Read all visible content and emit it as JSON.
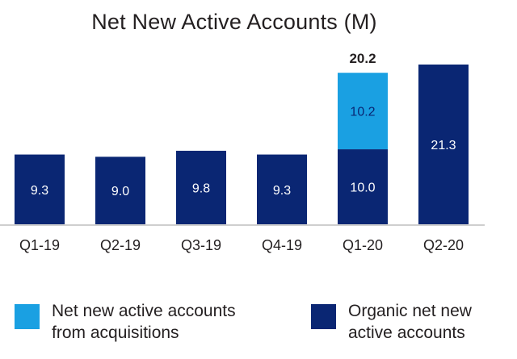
{
  "chart_data": {
    "type": "bar",
    "stacked": true,
    "title": "Net New Active Accounts (M)",
    "categories": [
      "Q1-19",
      "Q2-19",
      "Q3-19",
      "Q4-19",
      "Q1-20",
      "Q2-20"
    ],
    "series": [
      {
        "name": "Organic net new active accounts",
        "color": "#0a2673",
        "values": [
          9.3,
          9.0,
          9.8,
          9.3,
          10.0,
          21.3
        ],
        "labels": [
          "9.3",
          "9.0",
          "9.8",
          "9.3",
          "10.0",
          "21.3"
        ]
      },
      {
        "name": "Net new active accounts from acquisitions",
        "color": "#1aa0e2",
        "values": [
          0,
          0,
          0,
          0,
          10.2,
          0
        ],
        "labels": [
          "",
          "",
          "",
          "",
          "10.2",
          ""
        ]
      }
    ],
    "totals": [
      {
        "category": "Q1-20",
        "label": "20.2"
      }
    ],
    "ylim": [
      0,
      21.3
    ],
    "grid": false,
    "legend_position": "bottom"
  },
  "legend": [
    {
      "label": "Net new active accounts\nfrom acquisitions",
      "color": "#1aa0e2"
    },
    {
      "label": "Organic net new\nactive accounts",
      "color": "#0a2673"
    }
  ]
}
